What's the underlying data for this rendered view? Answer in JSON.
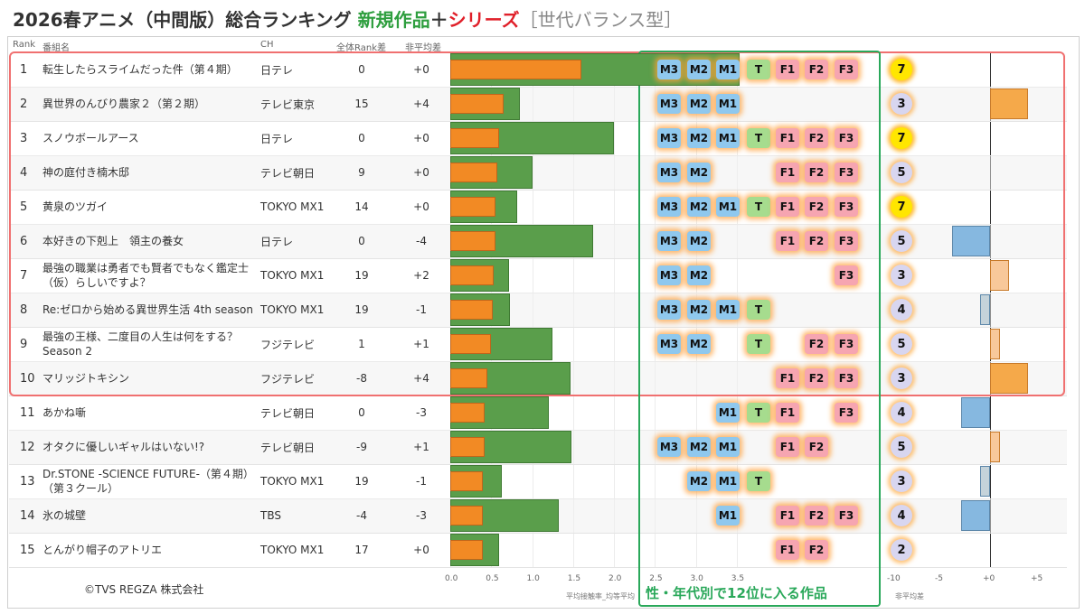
{
  "title": {
    "prefix": "2026春アニメ（中間版）総合ランキング",
    "new_label": "新規作品",
    "plus": "＋",
    "series_label": "シリーズ",
    "suffix": "［世代バランス型］"
  },
  "headers": {
    "rank": "Rank",
    "title": "番組名",
    "channel": "CH",
    "rank_diff": "全体Rank差",
    "gap_avg": "非平均差"
  },
  "footer": {
    "copyright": "©TVS REGZA 株式会社",
    "green_label": "性・年代別で12位に入る作品",
    "x_axis_label": "平均接触率_均等平均",
    "gap_axis_label": "非平均差"
  },
  "chart_data": {
    "type": "bar",
    "x_ticks": [
      "0.0",
      "0.5",
      "1.0",
      "1.5",
      "2.0",
      "2.5",
      "3.0",
      "3.5"
    ],
    "gap_ticks": [
      "-10",
      "-5",
      "+0",
      "+5"
    ],
    "segment_tags": [
      "M3",
      "M2",
      "M1",
      "T",
      "F1",
      "F2",
      "F3"
    ],
    "rows": [
      {
        "rank": "1",
        "title": "転生したらスライムだった件（第４期）",
        "ch": "日テレ",
        "rank_diff": "0",
        "gap": "+0",
        "green": 3.6,
        "orange": 1.6,
        "segs": [
          "M3",
          "M2",
          "M1",
          "T",
          "F1",
          "F2",
          "F3"
        ],
        "count": "7",
        "gap_value": 0
      },
      {
        "rank": "2",
        "title": "異世界のんびり農家２（第２期）",
        "ch": "テレビ東京",
        "rank_diff": "15",
        "gap": "+4",
        "green": 0.85,
        "orange": 0.65,
        "segs": [
          "M3",
          "M2",
          "M1"
        ],
        "count": "3",
        "gap_value": 4
      },
      {
        "rank": "3",
        "title": "スノウボールアース",
        "ch": "日テレ",
        "rank_diff": "0",
        "gap": "+0",
        "green": 2.0,
        "orange": 0.6,
        "segs": [
          "M3",
          "M2",
          "M1",
          "T",
          "F1",
          "F2",
          "F3"
        ],
        "count": "7",
        "gap_value": 0
      },
      {
        "rank": "4",
        "title": "神の庭付き楠木邸",
        "ch": "テレビ朝日",
        "rank_diff": "9",
        "gap": "+0",
        "green": 1.0,
        "orange": 0.57,
        "segs": [
          "M3",
          "M2",
          "F1",
          "F2",
          "F3"
        ],
        "count": "5",
        "gap_value": 0
      },
      {
        "rank": "5",
        "title": "黄泉のツガイ",
        "ch": "TOKYO MX1",
        "rank_diff": "14",
        "gap": "+0",
        "green": 0.82,
        "orange": 0.55,
        "segs": [
          "M3",
          "M2",
          "M1",
          "T",
          "F1",
          "F2",
          "F3"
        ],
        "count": "7",
        "gap_value": 0
      },
      {
        "rank": "6",
        "title": "本好きの下剋上　領主の養女",
        "ch": "日テレ",
        "rank_diff": "0",
        "gap": "-4",
        "green": 1.75,
        "orange": 0.55,
        "segs": [
          "M3",
          "M2",
          "F1",
          "F2",
          "F3"
        ],
        "count": "5",
        "gap_value": -4
      },
      {
        "rank": "7",
        "title": "最強の職業は勇者でも賢者でもなく鑑定士（仮）らしいですよ？",
        "ch": "TOKYO MX1",
        "rank_diff": "19",
        "gap": "+2",
        "green": 0.72,
        "orange": 0.53,
        "segs": [
          "M3",
          "M2",
          "F3"
        ],
        "count": "3",
        "gap_value": 2
      },
      {
        "rank": "8",
        "title": "Re:ゼロから始める異世界生活 4th season",
        "ch": "TOKYO MX1",
        "rank_diff": "19",
        "gap": "-1",
        "green": 0.73,
        "orange": 0.52,
        "segs": [
          "M3",
          "M2",
          "M1",
          "T"
        ],
        "count": "4",
        "gap_value": -1
      },
      {
        "rank": "9",
        "title": "最強の王様、二度目の人生は何をする？ Season 2",
        "ch": "フジテレビ",
        "rank_diff": "1",
        "gap": "+1",
        "green": 1.25,
        "orange": 0.5,
        "segs": [
          "M3",
          "M2",
          "T",
          "F2",
          "F3"
        ],
        "count": "5",
        "gap_value": 1
      },
      {
        "rank": "10",
        "title": "マリッジトキシン",
        "ch": "フジテレビ",
        "rank_diff": "-8",
        "gap": "+4",
        "green": 1.47,
        "orange": 0.45,
        "segs": [
          "F1",
          "F2",
          "F3"
        ],
        "count": "3",
        "gap_value": 4
      },
      {
        "rank": "11",
        "title": "あかね噺",
        "ch": "テレビ朝日",
        "rank_diff": "0",
        "gap": "-3",
        "green": 1.2,
        "orange": 0.42,
        "segs": [
          "M1",
          "T",
          "F1",
          "F3"
        ],
        "count": "4",
        "gap_value": -3
      },
      {
        "rank": "12",
        "title": "オタクに優しいギャルはいない!?",
        "ch": "テレビ朝日",
        "rank_diff": "-9",
        "gap": "+1",
        "green": 1.48,
        "orange": 0.42,
        "segs": [
          "M3",
          "M2",
          "M1",
          "F1",
          "F2"
        ],
        "count": "5",
        "gap_value": 1
      },
      {
        "rank": "13",
        "title": "Dr.STONE -SCIENCE FUTURE-（第４期）（第３クール）",
        "ch": "TOKYO MX1",
        "rank_diff": "19",
        "gap": "-1",
        "green": 0.63,
        "orange": 0.4,
        "segs": [
          "M2",
          "M1",
          "T"
        ],
        "count": "3",
        "gap_value": -1
      },
      {
        "rank": "14",
        "title": "氷の城壁",
        "ch": "TBS",
        "rank_diff": "-4",
        "gap": "-3",
        "green": 1.33,
        "orange": 0.4,
        "segs": [
          "M1",
          "F1",
          "F2",
          "F3"
        ],
        "count": "4",
        "gap_value": -3
      },
      {
        "rank": "15",
        "title": "とんがり帽子のアトリエ",
        "ch": "TOKYO MX1",
        "rank_diff": "17",
        "gap": "+0",
        "green": 0.6,
        "orange": 0.4,
        "segs": [
          "F1",
          "F2"
        ],
        "count": "2",
        "gap_value": 0
      }
    ]
  }
}
